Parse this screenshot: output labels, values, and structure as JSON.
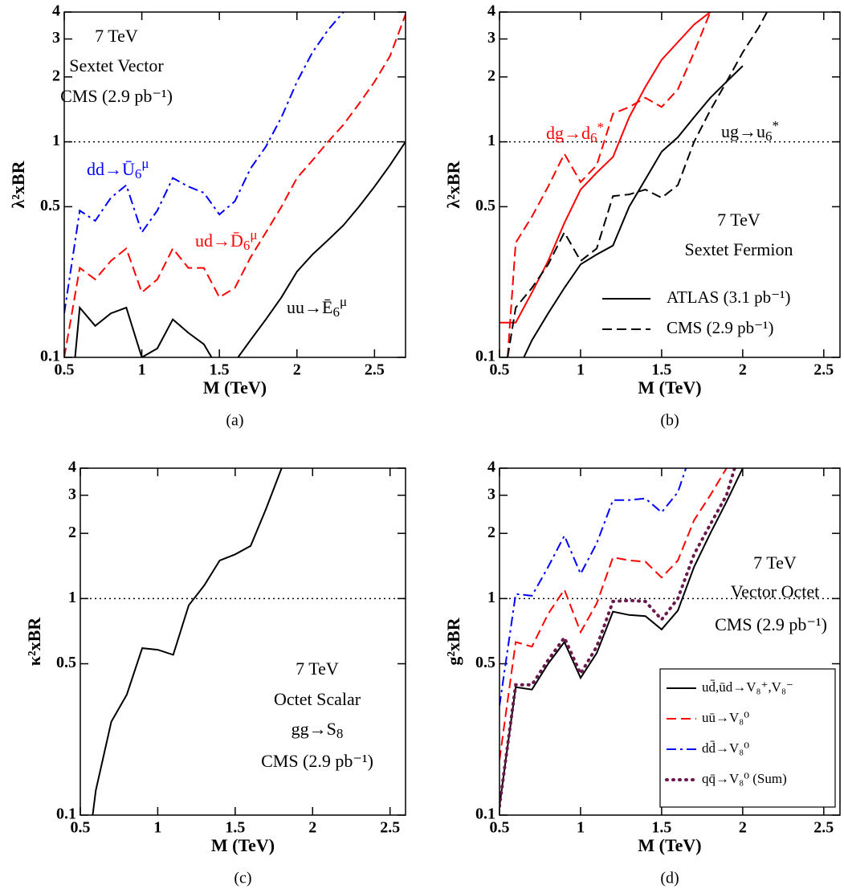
{
  "chart_data": [
    {
      "type": "line",
      "caption": "(a)",
      "xlabel": "M (TeV)",
      "ylabel": "λ²xBR",
      "log_y": true,
      "xlim": [
        0.5,
        2.7
      ],
      "ylim": [
        0.1,
        4
      ],
      "xticks": [
        0.5,
        1,
        1.5,
        2,
        2.5
      ],
      "yticks": [
        0.1,
        0.5,
        1,
        2,
        3,
        4
      ],
      "hline": 1,
      "series": [
        {
          "color": "#0000ff",
          "dash": "dashdot",
          "x": [
            0.5,
            0.6,
            0.7,
            0.8,
            0.9,
            1.0,
            1.1,
            1.2,
            1.3,
            1.4,
            1.5,
            1.6,
            1.7,
            1.8,
            1.9,
            2.0,
            2.1,
            2.2,
            2.3
          ],
          "values": [
            0.16,
            0.48,
            0.43,
            0.55,
            0.63,
            0.38,
            0.48,
            0.68,
            0.62,
            0.58,
            0.46,
            0.53,
            0.75,
            0.95,
            1.3,
            1.9,
            2.6,
            3.3,
            4.0
          ]
        },
        {
          "color": "#ff0000",
          "dash": "dashed",
          "x": [
            0.5,
            0.6,
            0.7,
            0.8,
            0.9,
            1.0,
            1.1,
            1.2,
            1.3,
            1.4,
            1.5,
            1.6,
            1.7,
            1.8,
            1.9,
            2.0,
            2.1,
            2.2,
            2.3,
            2.4,
            2.5,
            2.6,
            2.7
          ],
          "values": [
            0.1,
            0.26,
            0.23,
            0.28,
            0.32,
            0.2,
            0.23,
            0.32,
            0.26,
            0.26,
            0.19,
            0.21,
            0.29,
            0.38,
            0.5,
            0.68,
            0.82,
            1.0,
            1.2,
            1.5,
            1.9,
            2.5,
            3.9
          ]
        },
        {
          "color": "#000000",
          "dash": "solid",
          "x": [
            0.57,
            0.6,
            0.7,
            0.8,
            0.9,
            1.0,
            1.1,
            1.2,
            1.3,
            1.4,
            1.45,
            1.5,
            1.62,
            1.7,
            1.8,
            1.9,
            2.0,
            2.1,
            2.2,
            2.3,
            2.4,
            2.5,
            2.6,
            2.7
          ],
          "values": [
            0.1,
            0.17,
            0.14,
            0.16,
            0.17,
            0.1,
            0.11,
            0.15,
            0.13,
            0.115,
            0.1,
            null,
            0.1,
            0.12,
            0.15,
            0.19,
            0.25,
            0.3,
            0.35,
            0.41,
            0.5,
            0.62,
            0.78,
            1.0
          ]
        }
      ],
      "annotations": [
        {
          "parts": [
            "7 TeV"
          ],
          "shift": [
            "base"
          ],
          "color": "#000000"
        },
        {
          "parts": [
            "Sextet Vector"
          ],
          "shift": [
            "base"
          ],
          "color": "#000000"
        },
        {
          "parts": [
            "CMS (2.9 pb⁻¹)"
          ],
          "shift": [
            "base"
          ],
          "color": "#000000"
        },
        {
          "parts": [
            "dd→Ū",
            "6",
            "μ"
          ],
          "shift": [
            "base",
            "sub",
            "sup"
          ],
          "color": "#0000ff"
        },
        {
          "parts": [
            "ud→D̄",
            "6",
            "μ"
          ],
          "shift": [
            "base",
            "sub",
            "sup"
          ],
          "color": "#ff0000"
        },
        {
          "parts": [
            "uu→Ē",
            "6",
            "μ"
          ],
          "shift": [
            "base",
            "sub",
            "sup"
          ],
          "color": "#000000"
        }
      ]
    },
    {
      "type": "line",
      "caption": "(b)",
      "xlabel": "M (TeV)",
      "ylabel": "λ²xBR",
      "log_y": true,
      "xlim": [
        0.5,
        2.6
      ],
      "ylim": [
        0.1,
        4
      ],
      "xticks": [
        0.5,
        1,
        1.5,
        2,
        2.5
      ],
      "yticks": [
        0.1,
        0.5,
        1,
        2,
        3,
        4
      ],
      "hline": 1,
      "series": [
        {
          "color": "#ff0000",
          "dash": "solid",
          "x": [
            0.5,
            0.6,
            0.7,
            0.8,
            0.9,
            1.0,
            1.1,
            1.2,
            1.3,
            1.4,
            1.5,
            1.6,
            1.7,
            1.8
          ],
          "values": [
            0.145,
            0.145,
            0.2,
            0.28,
            0.42,
            0.6,
            0.72,
            0.85,
            1.3,
            1.8,
            2.4,
            2.9,
            3.5,
            4.0
          ]
        },
        {
          "color": "#ff0000",
          "dash": "dashed",
          "x": [
            0.55,
            0.6,
            0.7,
            0.8,
            0.9,
            1.0,
            1.1,
            1.2,
            1.3,
            1.4,
            1.5,
            1.6,
            1.7,
            1.8
          ],
          "values": [
            0.1,
            0.34,
            0.45,
            0.62,
            0.88,
            0.65,
            0.78,
            1.35,
            1.45,
            1.6,
            1.45,
            1.75,
            2.6,
            4.0
          ]
        },
        {
          "color": "#000000",
          "dash": "solid",
          "x": [
            0.65,
            0.7,
            0.8,
            0.9,
            1.0,
            1.1,
            1.2,
            1.3,
            1.4,
            1.5,
            1.6,
            1.7,
            1.8,
            1.9,
            2.0
          ],
          "values": [
            0.1,
            0.12,
            0.16,
            0.21,
            0.27,
            0.3,
            0.33,
            0.5,
            0.67,
            0.9,
            1.05,
            1.3,
            1.6,
            1.9,
            2.25
          ]
        },
        {
          "color": "#000000",
          "dash": "dashed",
          "x": [
            0.55,
            0.6,
            0.7,
            0.8,
            0.9,
            1.0,
            1.1,
            1.2,
            1.3,
            1.4,
            1.5,
            1.6,
            1.7,
            1.8,
            1.9,
            2.0,
            2.1,
            2.15
          ],
          "values": [
            0.1,
            0.17,
            0.21,
            0.27,
            0.38,
            0.28,
            0.32,
            0.56,
            0.57,
            0.6,
            0.55,
            0.63,
            1.0,
            1.4,
            1.9,
            2.6,
            3.4,
            4.0
          ]
        }
      ],
      "annotations": [
        {
          "parts": [
            "dg→d",
            "6",
            "*"
          ],
          "shift": [
            "base",
            "sub",
            "sup"
          ],
          "color": "#ff0000"
        },
        {
          "parts": [
            "ug→u",
            "6",
            "*"
          ],
          "shift": [
            "base",
            "sub",
            "sup"
          ],
          "color": "#000000"
        },
        {
          "parts": [
            "7 TeV"
          ],
          "shift": [
            "base"
          ],
          "color": "#000000"
        },
        {
          "parts": [
            "Sextet Fermion"
          ],
          "shift": [
            "base"
          ],
          "color": "#000000"
        }
      ],
      "legend": [
        {
          "name": "ATLAS (3.1 pb⁻¹)",
          "color": "#000000",
          "dash": "solid"
        },
        {
          "name": "CMS (2.9 pb⁻¹)",
          "color": "#000000",
          "dash": "dashed"
        }
      ]
    },
    {
      "type": "line",
      "caption": "(c)",
      "xlabel": "M (TeV)",
      "ylabel": "κ²xBR",
      "log_y": true,
      "xlim": [
        0.5,
        2.6
      ],
      "ylim": [
        0.1,
        4
      ],
      "xticks": [
        0.5,
        1,
        1.5,
        2,
        2.5
      ],
      "yticks": [
        0.1,
        0.5,
        1,
        2,
        3,
        4
      ],
      "hline": 1,
      "series": [
        {
          "color": "#000000",
          "dash": "solid",
          "x": [
            0.58,
            0.6,
            0.7,
            0.8,
            0.9,
            1.0,
            1.1,
            1.2,
            1.3,
            1.4,
            1.5,
            1.6,
            1.7,
            1.8
          ],
          "values": [
            0.1,
            0.13,
            0.27,
            0.36,
            0.59,
            0.58,
            0.55,
            0.93,
            1.15,
            1.5,
            1.6,
            1.75,
            2.6,
            4.0
          ]
        }
      ],
      "annotations": [
        {
          "parts": [
            "7 TeV"
          ],
          "shift": [
            "base"
          ],
          "color": "#000000"
        },
        {
          "parts": [
            "Octet Scalar"
          ],
          "shift": [
            "base"
          ],
          "color": "#000000"
        },
        {
          "parts": [
            "gg→S",
            "8"
          ],
          "shift": [
            "base",
            "sub"
          ],
          "color": "#000000"
        },
        {
          "parts": [
            "CMS (2.9 pb⁻¹)"
          ],
          "shift": [
            "base"
          ],
          "color": "#000000"
        }
      ]
    },
    {
      "type": "line",
      "caption": "(d)",
      "xlabel": "M (TeV)",
      "ylabel": "g²xBR",
      "log_y": true,
      "xlim": [
        0.5,
        2.6
      ],
      "ylim": [
        0.1,
        4
      ],
      "xticks": [
        0.5,
        1,
        1.5,
        2,
        2.5
      ],
      "yticks": [
        0.1,
        0.5,
        1,
        2,
        3,
        4
      ],
      "hline": 1,
      "series": [
        {
          "name": "ud̄,ūd→V₈⁺,V₈⁻",
          "color": "#000000",
          "dash": "solid",
          "x": [
            0.5,
            0.6,
            0.7,
            0.8,
            0.9,
            1.0,
            1.1,
            1.2,
            1.3,
            1.4,
            1.5,
            1.6,
            1.7,
            1.8,
            1.9,
            2.0
          ],
          "values": [
            0.11,
            0.39,
            0.38,
            0.5,
            0.63,
            0.43,
            0.56,
            0.87,
            0.84,
            0.83,
            0.72,
            0.88,
            1.4,
            2.0,
            2.8,
            4.0
          ]
        },
        {
          "name": "uū→V₈⁰",
          "color": "#ff0000",
          "dash": "dashed",
          "x": [
            0.5,
            0.6,
            0.7,
            0.8,
            0.9,
            1.0,
            1.1,
            1.2,
            1.3,
            1.4,
            1.5,
            1.6,
            1.7,
            1.8,
            1.9
          ],
          "values": [
            0.18,
            0.63,
            0.6,
            0.85,
            1.1,
            0.7,
            0.95,
            1.55,
            1.5,
            1.48,
            1.25,
            1.5,
            2.3,
            3.0,
            4.0
          ]
        },
        {
          "name": "dd̄→V₈⁰",
          "color": "#0000ff",
          "dash": "dashdot",
          "x": [
            0.5,
            0.6,
            0.7,
            0.8,
            0.9,
            1.0,
            1.1,
            1.2,
            1.3,
            1.4,
            1.5,
            1.6,
            1.65
          ],
          "values": [
            0.32,
            1.05,
            1.03,
            1.4,
            1.95,
            1.3,
            1.8,
            2.85,
            2.85,
            2.9,
            2.5,
            3.1,
            4.0
          ]
        },
        {
          "name": "qq̄→V₈⁰ (Sum)",
          "color": "#6b1a4e",
          "dash": "dotted",
          "x": [
            0.5,
            0.6,
            0.7,
            0.8,
            0.9,
            1.0,
            1.1,
            1.2,
            1.3,
            1.4,
            1.5,
            1.6,
            1.7,
            1.8,
            1.9,
            1.95
          ],
          "values": [
            0.11,
            0.4,
            0.4,
            0.52,
            0.66,
            0.45,
            0.6,
            0.97,
            0.98,
            0.97,
            0.8,
            1.0,
            1.6,
            2.2,
            3.0,
            4.0
          ]
        }
      ],
      "annotations": [
        {
          "parts": [
            "7 TeV"
          ],
          "shift": [
            "base"
          ],
          "color": "#000000"
        },
        {
          "parts": [
            "Vector Octet"
          ],
          "shift": [
            "base"
          ],
          "color": "#000000"
        },
        {
          "parts": [
            "CMS  (2.9 pb⁻¹)"
          ],
          "shift": [
            "base"
          ],
          "color": "#000000"
        }
      ],
      "legend": "lower right"
    }
  ]
}
